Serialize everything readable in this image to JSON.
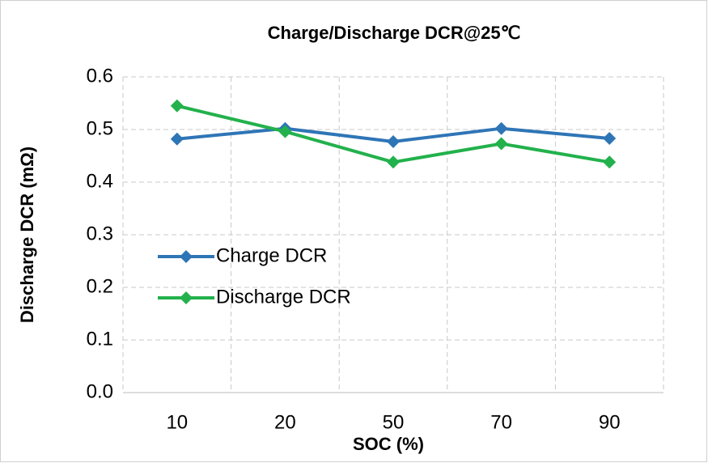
{
  "chart_data": {
    "type": "line",
    "title": "Charge/Discharge DCR@25℃",
    "x_label": "SOC (%)",
    "y_label": "Discharge DCR (mΩ)",
    "categories": [
      "10",
      "20",
      "50",
      "70",
      "90"
    ],
    "series": [
      {
        "name": "Charge DCR",
        "color": "#2e75b6",
        "values": [
          0.482,
          0.502,
          0.477,
          0.502,
          0.483
        ]
      },
      {
        "name": "Discharge DCR",
        "color": "#22b14c",
        "values": [
          0.545,
          0.496,
          0.438,
          0.473,
          0.438
        ]
      }
    ],
    "ylim": [
      0,
      0.6
    ],
    "yticks": [
      {
        "value": 0,
        "label": "0.0"
      },
      0.1,
      0.2,
      0.3,
      0.4,
      0.5,
      0.6
    ],
    "grid": true,
    "legend": "left"
  }
}
